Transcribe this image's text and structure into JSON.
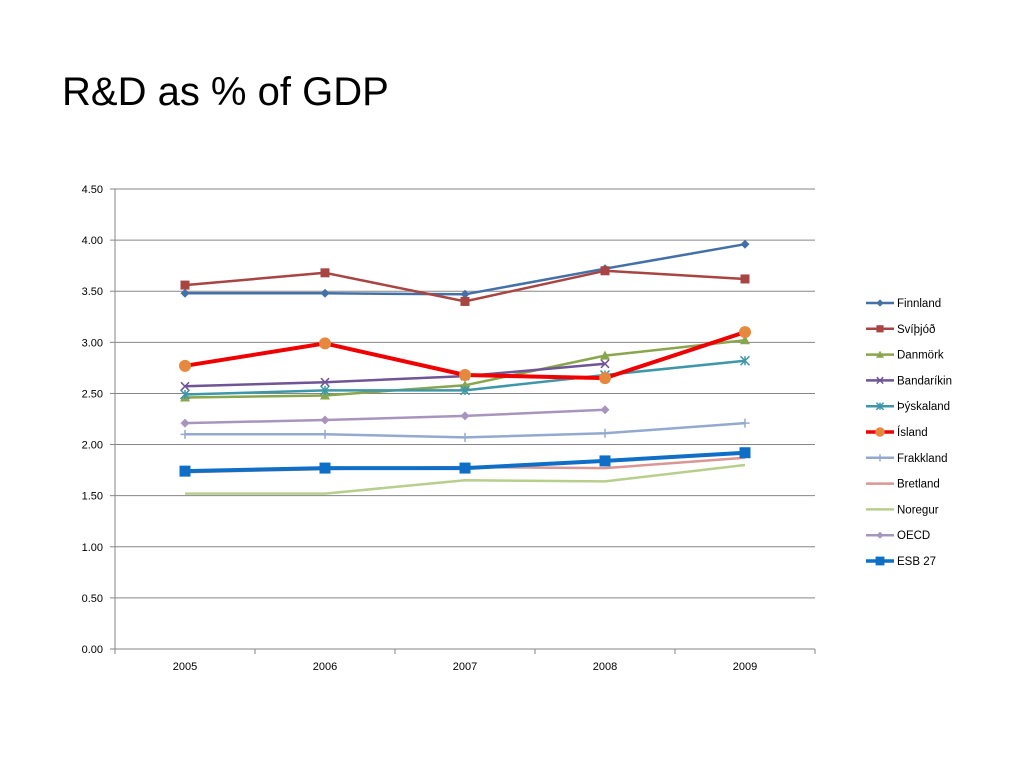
{
  "slide": {
    "title": "R&D as % of GDP"
  },
  "chart_data": {
    "type": "line",
    "x": [
      "2005",
      "2006",
      "2007",
      "2008",
      "2009"
    ],
    "ylim": [
      0,
      4.5
    ],
    "yticks": [
      "0.00",
      "0.50",
      "1.00",
      "1.50",
      "2.00",
      "2.50",
      "3.00",
      "3.50",
      "4.00",
      "4.50"
    ],
    "grid": "horizontal",
    "legend": "right",
    "series": [
      {
        "name": "Finnland",
        "color": "#4470a8",
        "marker": "diamond",
        "width": 2.5,
        "values": [
          3.48,
          3.48,
          3.47,
          3.72,
          3.96
        ]
      },
      {
        "name": "Svíþjóð",
        "color": "#a84442",
        "marker": "square",
        "width": 2.5,
        "values": [
          3.56,
          3.68,
          3.4,
          3.7,
          3.62
        ]
      },
      {
        "name": "Danmörk",
        "color": "#89a54e",
        "marker": "triangle",
        "width": 2.5,
        "values": [
          2.46,
          2.48,
          2.58,
          2.87,
          3.02
        ]
      },
      {
        "name": "Bandaríkin",
        "color": "#6f5496",
        "marker": "x",
        "width": 2.5,
        "values": [
          2.57,
          2.61,
          2.67,
          2.79,
          null
        ]
      },
      {
        "name": "Þýskaland",
        "color": "#3e97a8",
        "marker": "star",
        "width": 2.5,
        "values": [
          2.49,
          2.53,
          2.53,
          2.68,
          2.82
        ]
      },
      {
        "name": "Ísland",
        "color": "#f00000",
        "marker": "circle",
        "markerColor": "#e6883e",
        "width": 4,
        "values": [
          2.77,
          2.99,
          2.68,
          2.65,
          3.1
        ]
      },
      {
        "name": "Frakkland",
        "color": "#93a9cf",
        "marker": "plus",
        "width": 2.5,
        "values": [
          2.1,
          2.1,
          2.07,
          2.11,
          2.21
        ]
      },
      {
        "name": "Bretland",
        "color": "#d99694",
        "marker": "none",
        "width": 2.5,
        "values": [
          1.73,
          1.76,
          1.78,
          1.77,
          1.87
        ]
      },
      {
        "name": "Noregur",
        "color": "#b7cf8c",
        "marker": "none",
        "width": 2.5,
        "values": [
          1.52,
          1.52,
          1.65,
          1.64,
          1.8
        ]
      },
      {
        "name": "OECD",
        "color": "#a895be",
        "marker": "diamond",
        "width": 2.5,
        "values": [
          2.21,
          2.24,
          2.28,
          2.34,
          null
        ]
      },
      {
        "name": "ESB 27",
        "color": "#0f6fc6",
        "marker": "square-big",
        "width": 4,
        "values": [
          1.74,
          1.77,
          1.77,
          1.84,
          1.92
        ]
      }
    ]
  }
}
